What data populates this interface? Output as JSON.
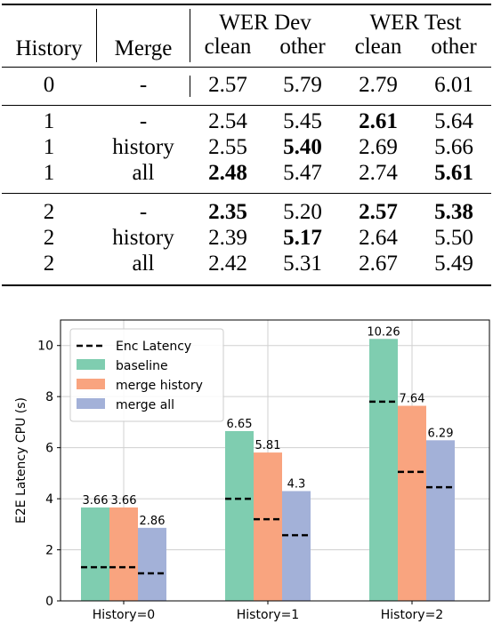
{
  "table": {
    "group_headers": [
      "WER Dev",
      "WER Test"
    ],
    "columns": [
      "History",
      "Merge",
      "clean",
      "other",
      "clean",
      "other"
    ],
    "rows": [
      [
        {
          "t": "0"
        },
        {
          "t": "-"
        },
        {
          "t": "2.57"
        },
        {
          "t": "5.79"
        },
        {
          "t": "2.79"
        },
        {
          "t": "6.01"
        }
      ],
      [
        {
          "t": "1"
        },
        {
          "t": "-"
        },
        {
          "t": "2.54"
        },
        {
          "t": "5.45"
        },
        {
          "t": "2.61",
          "b": true
        },
        {
          "t": "5.64"
        }
      ],
      [
        {
          "t": "1"
        },
        {
          "t": "history"
        },
        {
          "t": "2.55"
        },
        {
          "t": "5.40",
          "b": true
        },
        {
          "t": "2.69"
        },
        {
          "t": "5.66"
        }
      ],
      [
        {
          "t": "1"
        },
        {
          "t": "all"
        },
        {
          "t": "2.48",
          "b": true
        },
        {
          "t": "5.47"
        },
        {
          "t": "2.74"
        },
        {
          "t": "5.61",
          "b": true
        }
      ],
      [
        {
          "t": "2"
        },
        {
          "t": "-"
        },
        {
          "t": "2.35",
          "b": true
        },
        {
          "t": "5.20"
        },
        {
          "t": "2.57",
          "b": true
        },
        {
          "t": "5.38",
          "b": true
        }
      ],
      [
        {
          "t": "2"
        },
        {
          "t": "history"
        },
        {
          "t": "2.39"
        },
        {
          "t": "5.17",
          "b": true
        },
        {
          "t": "2.64"
        },
        {
          "t": "5.50"
        }
      ],
      [
        {
          "t": "2"
        },
        {
          "t": "all"
        },
        {
          "t": "2.42"
        },
        {
          "t": "5.31"
        },
        {
          "t": "2.67"
        },
        {
          "t": "5.49"
        }
      ]
    ]
  },
  "chart_data": {
    "type": "bar",
    "categories": [
      "History=0",
      "History=1",
      "History=2"
    ],
    "ylabel": "E2E Latency CPU (s)",
    "xlabel": "",
    "ylim": [
      0,
      11
    ],
    "yticks": [
      0,
      2,
      4,
      6,
      8,
      10
    ],
    "grid": true,
    "legend_position": "top-left",
    "series": [
      {
        "name": "baseline",
        "color": "#7fcdb0",
        "values": [
          3.66,
          6.65,
          10.26
        ],
        "labels": [
          "3.66",
          "6.65",
          "10.26"
        ]
      },
      {
        "name": "merge history",
        "color": "#f9a47f",
        "values": [
          3.66,
          5.81,
          7.64
        ],
        "labels": [
          "3.66",
          "5.81",
          "7.64"
        ]
      },
      {
        "name": "merge all",
        "color": "#a3b1d8",
        "values": [
          2.86,
          4.3,
          6.29
        ],
        "labels": [
          "2.86",
          "4.3",
          "6.29"
        ]
      }
    ],
    "enc_latency": {
      "name": "Enc Latency",
      "values": [
        [
          1.32,
          1.32,
          1.08
        ],
        [
          4.0,
          3.2,
          2.57
        ],
        [
          7.8,
          5.05,
          4.45
        ]
      ]
    }
  }
}
